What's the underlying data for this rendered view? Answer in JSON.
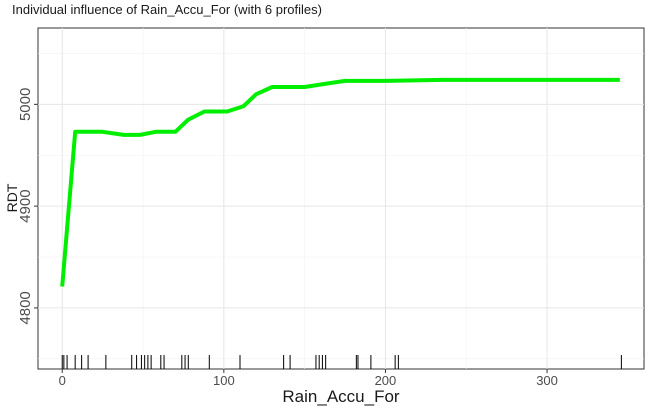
{
  "chart_data": {
    "type": "line",
    "title": "Individual influence of Rain_Accu_For (with 6 profiles)",
    "xlabel": "Rain_Accu_For",
    "ylabel": "RDT",
    "xlim": [
      -15,
      360
    ],
    "ylim": [
      4740,
      5075
    ],
    "xticks": [
      0,
      100,
      200,
      300
    ],
    "yticks": [
      4800,
      4900,
      5000
    ],
    "grid": true,
    "series": [
      {
        "color": "#00ee00",
        "x": [
          0,
          8,
          25,
          38,
          48,
          58,
          70,
          78,
          88,
          102,
          112,
          120,
          130,
          150,
          162,
          175,
          200,
          235,
          345
        ],
        "y": [
          4821,
          4973,
          4973,
          4970,
          4970,
          4973,
          4973,
          4985,
          4993,
          4993,
          4998,
          5010,
          5017,
          5017,
          5020,
          5023,
          5023,
          5024,
          5024
        ]
      }
    ],
    "rug_x": [
      0,
      1,
      3,
      8,
      12,
      16,
      27,
      43,
      46,
      49,
      51,
      53,
      55,
      61,
      63,
      74,
      76,
      78,
      91,
      110,
      137,
      141,
      157,
      159,
      161,
      163,
      182,
      183,
      191,
      206,
      208,
      346
    ]
  }
}
